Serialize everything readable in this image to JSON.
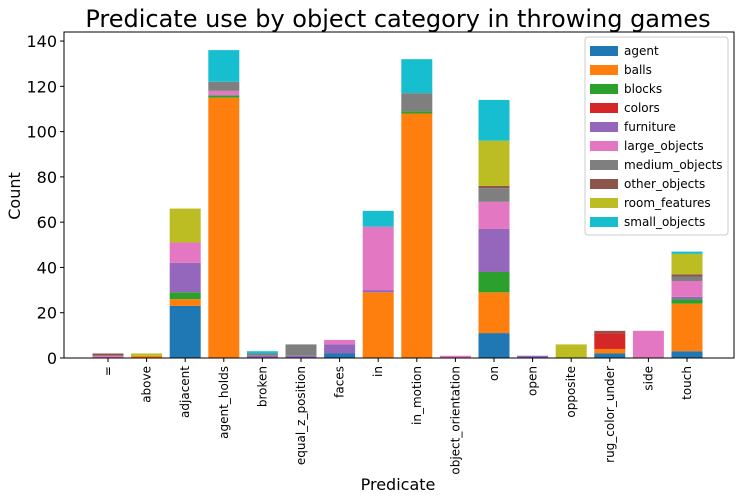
{
  "chart_data": {
    "type": "bar",
    "stacked": true,
    "title": "Predicate use by object category in throwing games",
    "xlabel": "Predicate",
    "ylabel": "Count",
    "ylim": [
      0,
      144
    ],
    "yticks": [
      0,
      20,
      40,
      60,
      80,
      100,
      120,
      140
    ],
    "legend_position": "top-right",
    "categories": [
      "=",
      "above",
      "adjacent",
      "agent_holds",
      "broken",
      "equal_z_position",
      "faces",
      "in",
      "in_motion",
      "object_orientation",
      "on",
      "open",
      "opposite",
      "rug_color_under",
      "side",
      "touch"
    ],
    "series": [
      {
        "name": "agent",
        "color": "#1f77b4",
        "values": [
          0,
          0,
          23,
          0,
          0,
          0,
          2,
          0,
          0,
          0,
          11,
          0,
          0,
          2,
          0,
          3
        ]
      },
      {
        "name": "balls",
        "color": "#ff7f0e",
        "values": [
          0,
          1,
          3,
          115,
          0,
          0,
          0,
          29,
          108,
          0,
          18,
          0,
          0,
          2,
          0,
          21
        ]
      },
      {
        "name": "blocks",
        "color": "#2ca02c",
        "values": [
          0,
          0,
          3,
          1,
          0,
          0,
          0,
          0,
          1,
          0,
          9,
          0,
          0,
          0,
          0,
          2
        ]
      },
      {
        "name": "colors",
        "color": "#d62728",
        "values": [
          0,
          0,
          0,
          0,
          0,
          0,
          0,
          0,
          0,
          0,
          0,
          0,
          0,
          7,
          0,
          0
        ]
      },
      {
        "name": "furniture",
        "color": "#9467bd",
        "values": [
          0,
          0,
          13,
          0,
          1,
          1,
          4,
          1,
          0,
          0,
          19,
          1,
          0,
          0,
          0,
          1
        ]
      },
      {
        "name": "large_objects",
        "color": "#e377c2",
        "values": [
          1,
          0,
          9,
          2,
          0,
          0,
          2,
          28,
          0,
          1,
          12,
          0,
          0,
          0,
          12,
          7
        ]
      },
      {
        "name": "medium_objects",
        "color": "#7f7f7f",
        "values": [
          0,
          0,
          0,
          4,
          1,
          5,
          0,
          0,
          8,
          0,
          6,
          0,
          0,
          0,
          0,
          2
        ]
      },
      {
        "name": "other_objects",
        "color": "#8c564b",
        "values": [
          1,
          0,
          0,
          0,
          0,
          0,
          0,
          0,
          0,
          0,
          1,
          0,
          0,
          1,
          0,
          1
        ]
      },
      {
        "name": "room_features",
        "color": "#bcbd22",
        "values": [
          0,
          1,
          15,
          0,
          0,
          0,
          0,
          0,
          0,
          0,
          20,
          0,
          6,
          0,
          0,
          9
        ]
      },
      {
        "name": "small_objects",
        "color": "#17becf",
        "values": [
          0,
          0,
          0,
          14,
          1,
          0,
          0,
          7,
          15,
          0,
          18,
          0,
          0,
          0,
          0,
          1
        ]
      }
    ]
  }
}
